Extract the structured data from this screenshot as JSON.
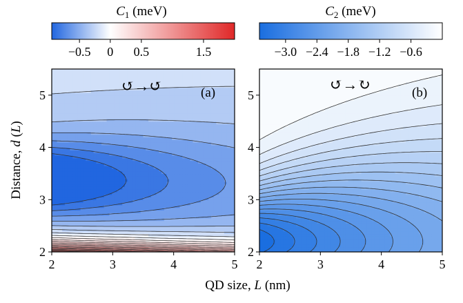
{
  "colors": {
    "c1_low": "#2166e0",
    "c1_mid": "#ffffff",
    "c1_high": "#e02828",
    "c2_low": "#1a6ee0",
    "c2_high": "#ffffff",
    "contour_line": "#333333"
  },
  "chart_data": [
    {
      "type": "contour",
      "panel_label": "(a)",
      "symbol": "↺→↺",
      "colorbar_label_var": "C",
      "colorbar_label_sub": "1",
      "colorbar_label_unit": " (meV)",
      "colorbar_ticks": [
        "−0.5",
        "0",
        "0.5",
        "1.5"
      ],
      "colorbar_tick_values": [
        -0.5,
        0,
        0.5,
        1.5
      ],
      "colorbar_range": [
        -0.95,
        2.0
      ],
      "xlabel": "QD size, L (nm)",
      "ylabel": "Distance, d (L)",
      "x_ticks": [
        "2",
        "3",
        "4",
        "5"
      ],
      "y_ticks": [
        "2",
        "3",
        "4",
        "5"
      ],
      "xlim": [
        2,
        5
      ],
      "ylim": [
        2,
        5.5
      ],
      "min_value": -0.9,
      "min_location": [
        2.0,
        3.4
      ],
      "max_value": 2.0,
      "max_location": [
        2.0,
        2.0
      ]
    },
    {
      "type": "contour",
      "panel_label": "(b)",
      "symbol": "↺→↻",
      "colorbar_label_var": "C",
      "colorbar_label_sub": "2",
      "colorbar_label_unit": " (meV)",
      "colorbar_ticks": [
        "−3.0",
        "−2.4",
        "−1.8",
        "−1.2",
        "−0.6"
      ],
      "colorbar_tick_values": [
        -3.0,
        -2.4,
        -1.8,
        -1.2,
        -0.6
      ],
      "colorbar_range": [
        -3.5,
        0.0
      ],
      "xlabel": "QD size, L (nm)",
      "ylabel": "Distance, d (L)",
      "x_ticks": [
        "2",
        "3",
        "4",
        "5"
      ],
      "y_ticks": [
        "2",
        "3",
        "4",
        "5"
      ],
      "xlim": [
        2,
        5
      ],
      "ylim": [
        2,
        5.5
      ],
      "min_value": -3.5,
      "min_location": [
        2.0,
        2.3
      ],
      "max_value": -0.05,
      "max_location": [
        5.0,
        5.5
      ]
    }
  ],
  "axes": {
    "xlabel_text": "QD size, ",
    "xlabel_var": "L",
    "xlabel_unit": " (nm)",
    "ylabel_text": "Distance, ",
    "ylabel_var": "d",
    "ylabel_paren_open": " (",
    "ylabel_var2": "L",
    "ylabel_paren_close": ")"
  }
}
